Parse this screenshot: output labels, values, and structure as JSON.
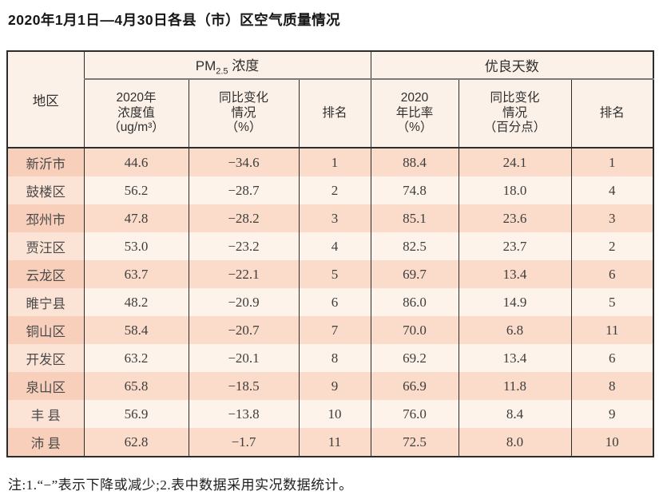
{
  "title": "2020年1月1日—4月30日各县（市）区空气质量情况",
  "note": "注:1.“−”表示下降或减少;2.表中数据采用实况数据统计。",
  "colors": {
    "row_odd": "#fbdbc9",
    "row_even": "#fdf3ea",
    "region_col_odd": "#f8cfba",
    "region_col_even": "#fbe3d5",
    "header_bg": "#fcf1e8",
    "border": "#2c2c2c"
  },
  "table": {
    "header": {
      "region": "地区",
      "pm_group": {
        "prefix": "PM",
        "sub": "2.5",
        "suffix": " 浓度"
      },
      "good_group": "优良天数",
      "sub_headers": {
        "pm_value": "2020年\n浓度值\n（ug/m³）",
        "pm_change": "同比变化\n情况\n（%）",
        "pm_rank": "排名",
        "good_rate": "2020\n年比率\n（%）",
        "good_change": "同比变化\n情况\n（百分点）",
        "good_rank": "排名"
      }
    },
    "rows": [
      {
        "region": "新沂市",
        "pm_value": "44.6",
        "pm_change": "−34.6",
        "pm_rank": "1",
        "good_rate": "88.4",
        "good_change": "24.1",
        "good_rank": "1"
      },
      {
        "region": "鼓楼区",
        "pm_value": "56.2",
        "pm_change": "−28.7",
        "pm_rank": "2",
        "good_rate": "74.8",
        "good_change": "18.0",
        "good_rank": "4"
      },
      {
        "region": "邳州市",
        "pm_value": "47.8",
        "pm_change": "−28.2",
        "pm_rank": "3",
        "good_rate": "85.1",
        "good_change": "23.6",
        "good_rank": "3"
      },
      {
        "region": "贾汪区",
        "pm_value": "53.0",
        "pm_change": "−23.2",
        "pm_rank": "4",
        "good_rate": "82.5",
        "good_change": "23.7",
        "good_rank": "2"
      },
      {
        "region": "云龙区",
        "pm_value": "63.7",
        "pm_change": "−22.1",
        "pm_rank": "5",
        "good_rate": "69.7",
        "good_change": "13.4",
        "good_rank": "6"
      },
      {
        "region": "睢宁县",
        "pm_value": "48.2",
        "pm_change": "−20.9",
        "pm_rank": "6",
        "good_rate": "86.0",
        "good_change": "14.9",
        "good_rank": "5"
      },
      {
        "region": "铜山区",
        "pm_value": "58.4",
        "pm_change": "−20.7",
        "pm_rank": "7",
        "good_rate": "70.0",
        "good_change": "6.8",
        "good_rank": "11"
      },
      {
        "region": "开发区",
        "pm_value": "63.2",
        "pm_change": "−20.1",
        "pm_rank": "8",
        "good_rate": "69.2",
        "good_change": "13.4",
        "good_rank": "6"
      },
      {
        "region": "泉山区",
        "pm_value": "65.8",
        "pm_change": "−18.5",
        "pm_rank": "9",
        "good_rate": "66.9",
        "good_change": "11.8",
        "good_rank": "8"
      },
      {
        "region": "丰 县",
        "pm_value": "56.9",
        "pm_change": "−13.8",
        "pm_rank": "10",
        "good_rate": "76.0",
        "good_change": "8.4",
        "good_rank": "9"
      },
      {
        "region": "沛 县",
        "pm_value": "62.8",
        "pm_change": "−1.7",
        "pm_rank": "11",
        "good_rate": "72.5",
        "good_change": "8.0",
        "good_rank": "10"
      }
    ]
  },
  "chart_data": {
    "type": "table",
    "title": "2020年1月1日—4月30日各县（市）区空气质量情况",
    "columns": [
      "地区",
      "PM2.5浓度 2020年浓度值（ug/m³）",
      "PM2.5浓度 同比变化情况（%）",
      "PM2.5浓度 排名",
      "优良天数 2020年比率（%）",
      "优良天数 同比变化情况（百分点）",
      "优良天数 排名"
    ],
    "rows": [
      [
        "新沂市",
        44.6,
        -34.6,
        1,
        88.4,
        24.1,
        1
      ],
      [
        "鼓楼区",
        56.2,
        -28.7,
        2,
        74.8,
        18.0,
        4
      ],
      [
        "邳州市",
        47.8,
        -28.2,
        3,
        85.1,
        23.6,
        3
      ],
      [
        "贾汪区",
        53.0,
        -23.2,
        4,
        82.5,
        23.7,
        2
      ],
      [
        "云龙区",
        63.7,
        -22.1,
        5,
        69.7,
        13.4,
        6
      ],
      [
        "睢宁县",
        48.2,
        -20.9,
        6,
        86.0,
        14.9,
        5
      ],
      [
        "铜山区",
        58.4,
        -20.7,
        7,
        70.0,
        6.8,
        11
      ],
      [
        "开发区",
        63.2,
        -20.1,
        8,
        69.2,
        13.4,
        6
      ],
      [
        "泉山区",
        65.8,
        -18.5,
        9,
        66.9,
        11.8,
        8
      ],
      [
        "丰县",
        56.9,
        -13.8,
        10,
        76.0,
        8.4,
        9
      ],
      [
        "沛县",
        62.8,
        -1.7,
        11,
        72.5,
        8.0,
        10
      ]
    ],
    "note": "注:1.“−”表示下降或减少;2.表中数据采用实况数据统计。"
  }
}
